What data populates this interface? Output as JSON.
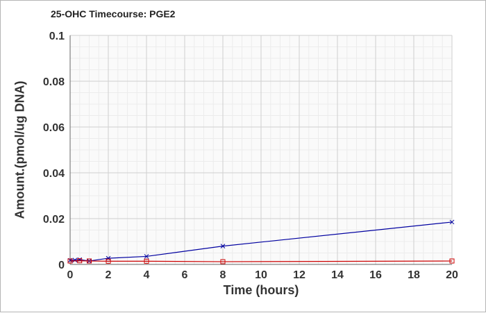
{
  "chart_data": {
    "type": "line",
    "title": "25-OHC Timecourse: PGE2",
    "xlabel": "Time (hours)",
    "ylabel": "Amount.(pmol/ug DNA)",
    "xlim": [
      0,
      20
    ],
    "ylim": [
      0,
      0.1
    ],
    "x_ticks": [
      "0",
      "2",
      "4",
      "6",
      "8",
      "10",
      "12",
      "14",
      "16",
      "18",
      "20"
    ],
    "y_ticks": [
      "0",
      "0.02",
      "0.04",
      "0.06",
      "0.08",
      "0.1"
    ],
    "grid": true,
    "legend": "none",
    "series": [
      {
        "color": "#0000a0",
        "marker": "x",
        "x": [
          0,
          0.25,
          0.5,
          1,
          2,
          4,
          8,
          20
        ],
        "y": [
          0.0018,
          0.0019,
          0.0021,
          0.0015,
          0.0027,
          0.0035,
          0.008,
          0.0185
        ]
      },
      {
        "color": "#cc0000",
        "marker": "square",
        "x": [
          0,
          0.5,
          1,
          2,
          4,
          8,
          20
        ],
        "y": [
          0.0015,
          0.0016,
          0.0015,
          0.0014,
          0.0014,
          0.0012,
          0.0015
        ]
      }
    ]
  }
}
